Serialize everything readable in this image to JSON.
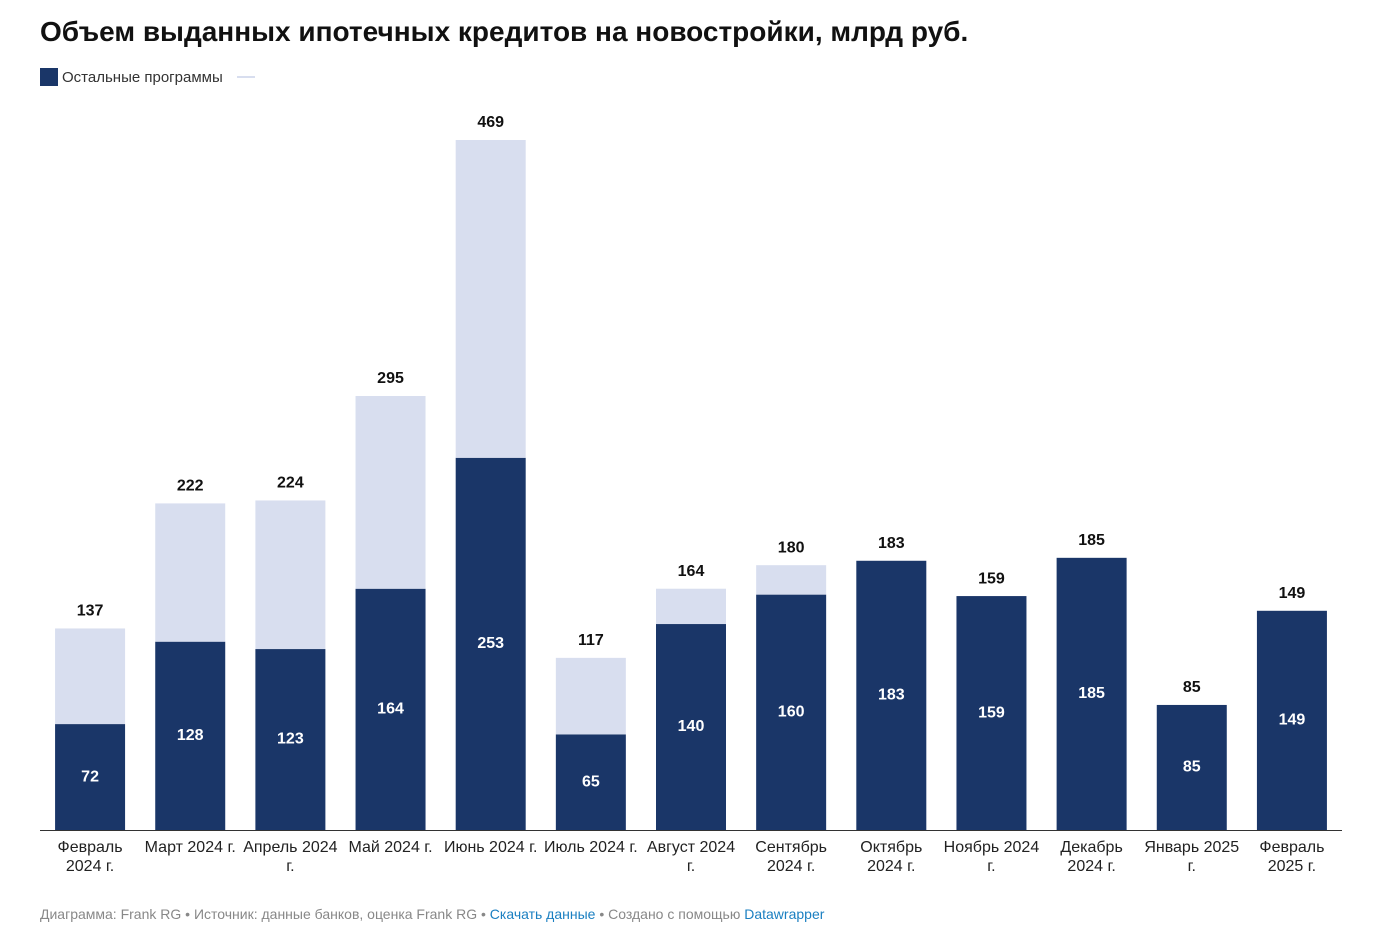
{
  "chart_data": {
    "type": "stacked-bar",
    "title": "Объем выданных ипотечных кредитов на новостройки, млрд руб.",
    "categories": [
      "Февраль 2024 г.",
      "Март 2024 г.",
      "Апрель 2024 г.",
      "Май 2024 г.",
      "Июнь 2024 г.",
      "Июль 2024 г.",
      "Август 2024 г.",
      "Сентябрь 2024 г.",
      "Октябрь 2024 г.",
      "Ноябрь 2024 г.",
      "Декабрь 2024 г.",
      "Январь 2025 г.",
      "Февраль 2025 г."
    ],
    "series": [
      {
        "name": "Остальные программы",
        "color": "#1a3668",
        "values": [
          72,
          128,
          123,
          164,
          253,
          65,
          140,
          160,
          183,
          159,
          185,
          85,
          149
        ]
      },
      {
        "color": "#d8deef",
        "values": [
          65,
          94,
          101,
          131,
          216,
          52,
          24,
          20,
          0,
          0,
          0,
          0,
          0
        ]
      }
    ],
    "totals": [
      137,
      222,
      224,
      295,
      469,
      117,
      164,
      180,
      183,
      159,
      185,
      85,
      149
    ]
  },
  "footer": {
    "byline": "Диаграмма: Frank RG",
    "source": "Источник: данные банков, оценка Frank RG",
    "download": "Скачать данные",
    "created": "Создано с помощью",
    "tool": "Datawrapper"
  }
}
